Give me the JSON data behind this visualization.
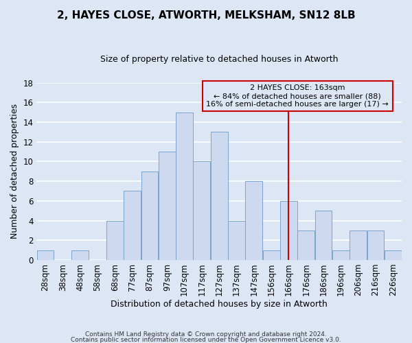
{
  "title": "2, HAYES CLOSE, ATWORTH, MELKSHAM, SN12 8LB",
  "subtitle": "Size of property relative to detached houses in Atworth",
  "xlabel": "Distribution of detached houses by size in Atworth",
  "ylabel": "Number of detached properties",
  "footer_line1": "Contains HM Land Registry data © Crown copyright and database right 2024.",
  "footer_line2": "Contains public sector information licensed under the Open Government Licence v3.0.",
  "bin_labels": [
    "28sqm",
    "38sqm",
    "48sqm",
    "58sqm",
    "68sqm",
    "77sqm",
    "87sqm",
    "97sqm",
    "107sqm",
    "117sqm",
    "127sqm",
    "137sqm",
    "147sqm",
    "156sqm",
    "166sqm",
    "176sqm",
    "186sqm",
    "196sqm",
    "206sqm",
    "216sqm",
    "226sqm"
  ],
  "bin_values": [
    1,
    0,
    1,
    0,
    4,
    7,
    9,
    11,
    15,
    10,
    13,
    4,
    8,
    1,
    6,
    3,
    5,
    1,
    3,
    3,
    1
  ],
  "bar_color": "#ccd9ee",
  "bar_edge_color": "#7aa4cc",
  "background_color": "#dce6f5",
  "grid_color": "#ffffff",
  "annotation_text_line1": "2 HAYES CLOSE: 163sqm",
  "annotation_text_line2": "← 84% of detached houses are smaller (88)",
  "annotation_text_line3": "16% of semi-detached houses are larger (17) →",
  "vline_x_index": 14,
  "vline_color": "#cc0000",
  "annotation_box_color": "#cc0000",
  "ylim": [
    0,
    18
  ],
  "yticks": [
    0,
    2,
    4,
    6,
    8,
    10,
    12,
    14,
    16,
    18
  ],
  "title_fontsize": 11,
  "subtitle_fontsize": 9,
  "ylabel_fontsize": 9,
  "xlabel_fontsize": 9,
  "tick_fontsize": 8.5,
  "footer_fontsize": 6.5,
  "annotation_fontsize": 8
}
